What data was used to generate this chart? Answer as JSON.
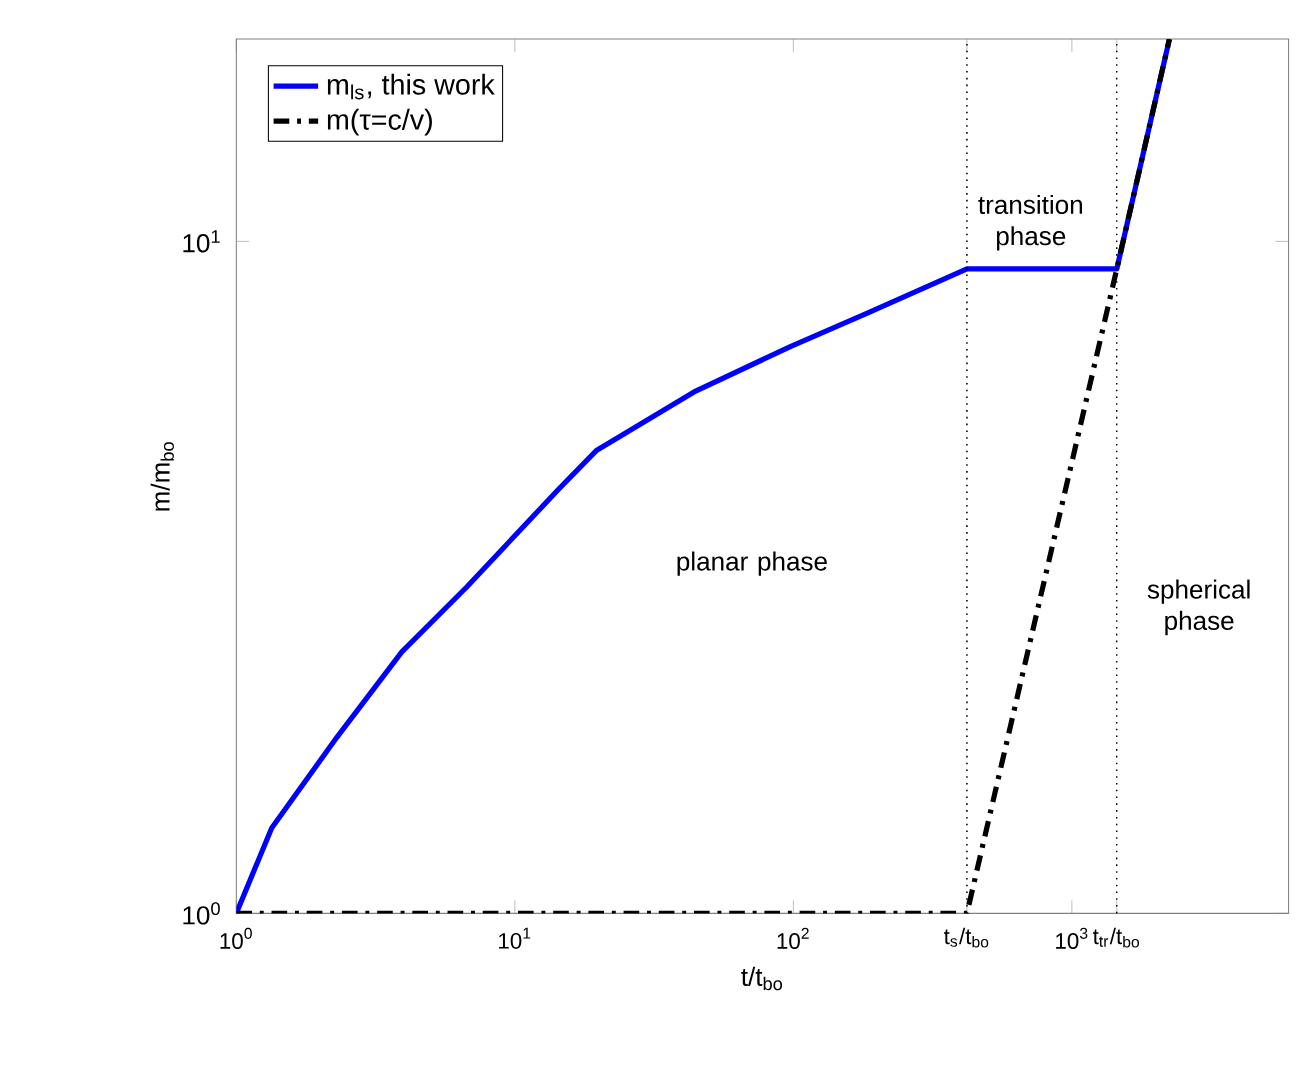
{
  "chart_data": {
    "type": "line",
    "xlabel": "t/t$_{bo}$",
    "ylabel": "m/m$_{bo}$",
    "log": "xy",
    "xlim": [
      1,
      6000
    ],
    "ylim": [
      1,
      20
    ],
    "xticks": [
      {
        "value": 1,
        "label": "10$^{0}$"
      },
      {
        "value": 10,
        "label": "10$^{1}$"
      },
      {
        "value": 100,
        "label": "10$^{2}$"
      },
      {
        "value": 420,
        "label": "t$_{s}$/t$_{bo}$"
      },
      {
        "value": 1000,
        "label": "10$^{3}$"
      },
      {
        "value": 1450,
        "label": "t$_{tr}$/t$_{bo}$"
      }
    ],
    "yticks": [
      {
        "value": 1,
        "label": "10$^{0}$"
      },
      {
        "value": 10,
        "label": "10$^{1}$"
      }
    ],
    "legend": "top left",
    "marker": "none",
    "series": [
      {
        "name": "m$_{ls}$, this work",
        "color": "#0000ff",
        "line_style": "solid",
        "x": [
          1,
          1.34,
          2.3,
          3.93,
          6.72,
          14.3,
          19.7,
          44,
          98,
          187,
          420,
          1450,
          2240
        ],
        "values": [
          1,
          1.34,
          1.83,
          2.45,
          3.06,
          4.27,
          4.89,
          5.97,
          6.98,
          7.84,
          9.1,
          9.1,
          20
        ]
      },
      {
        "name": "m(τ=c/v)",
        "color": "#000000",
        "line_style": "dashed",
        "x": [
          1,
          420,
          1450,
          2240
        ],
        "values": [
          1,
          1,
          9.1,
          20
        ]
      }
    ],
    "ref_lines": [
      {
        "axis": "x",
        "value": 420,
        "color": "#000000",
        "line_style": "dotted"
      },
      {
        "axis": "x",
        "value": 1450,
        "color": "#000000",
        "line_style": "dotted"
      }
    ],
    "annotations": [
      "planar phase",
      "transition phase",
      "spherical phase"
    ]
  }
}
